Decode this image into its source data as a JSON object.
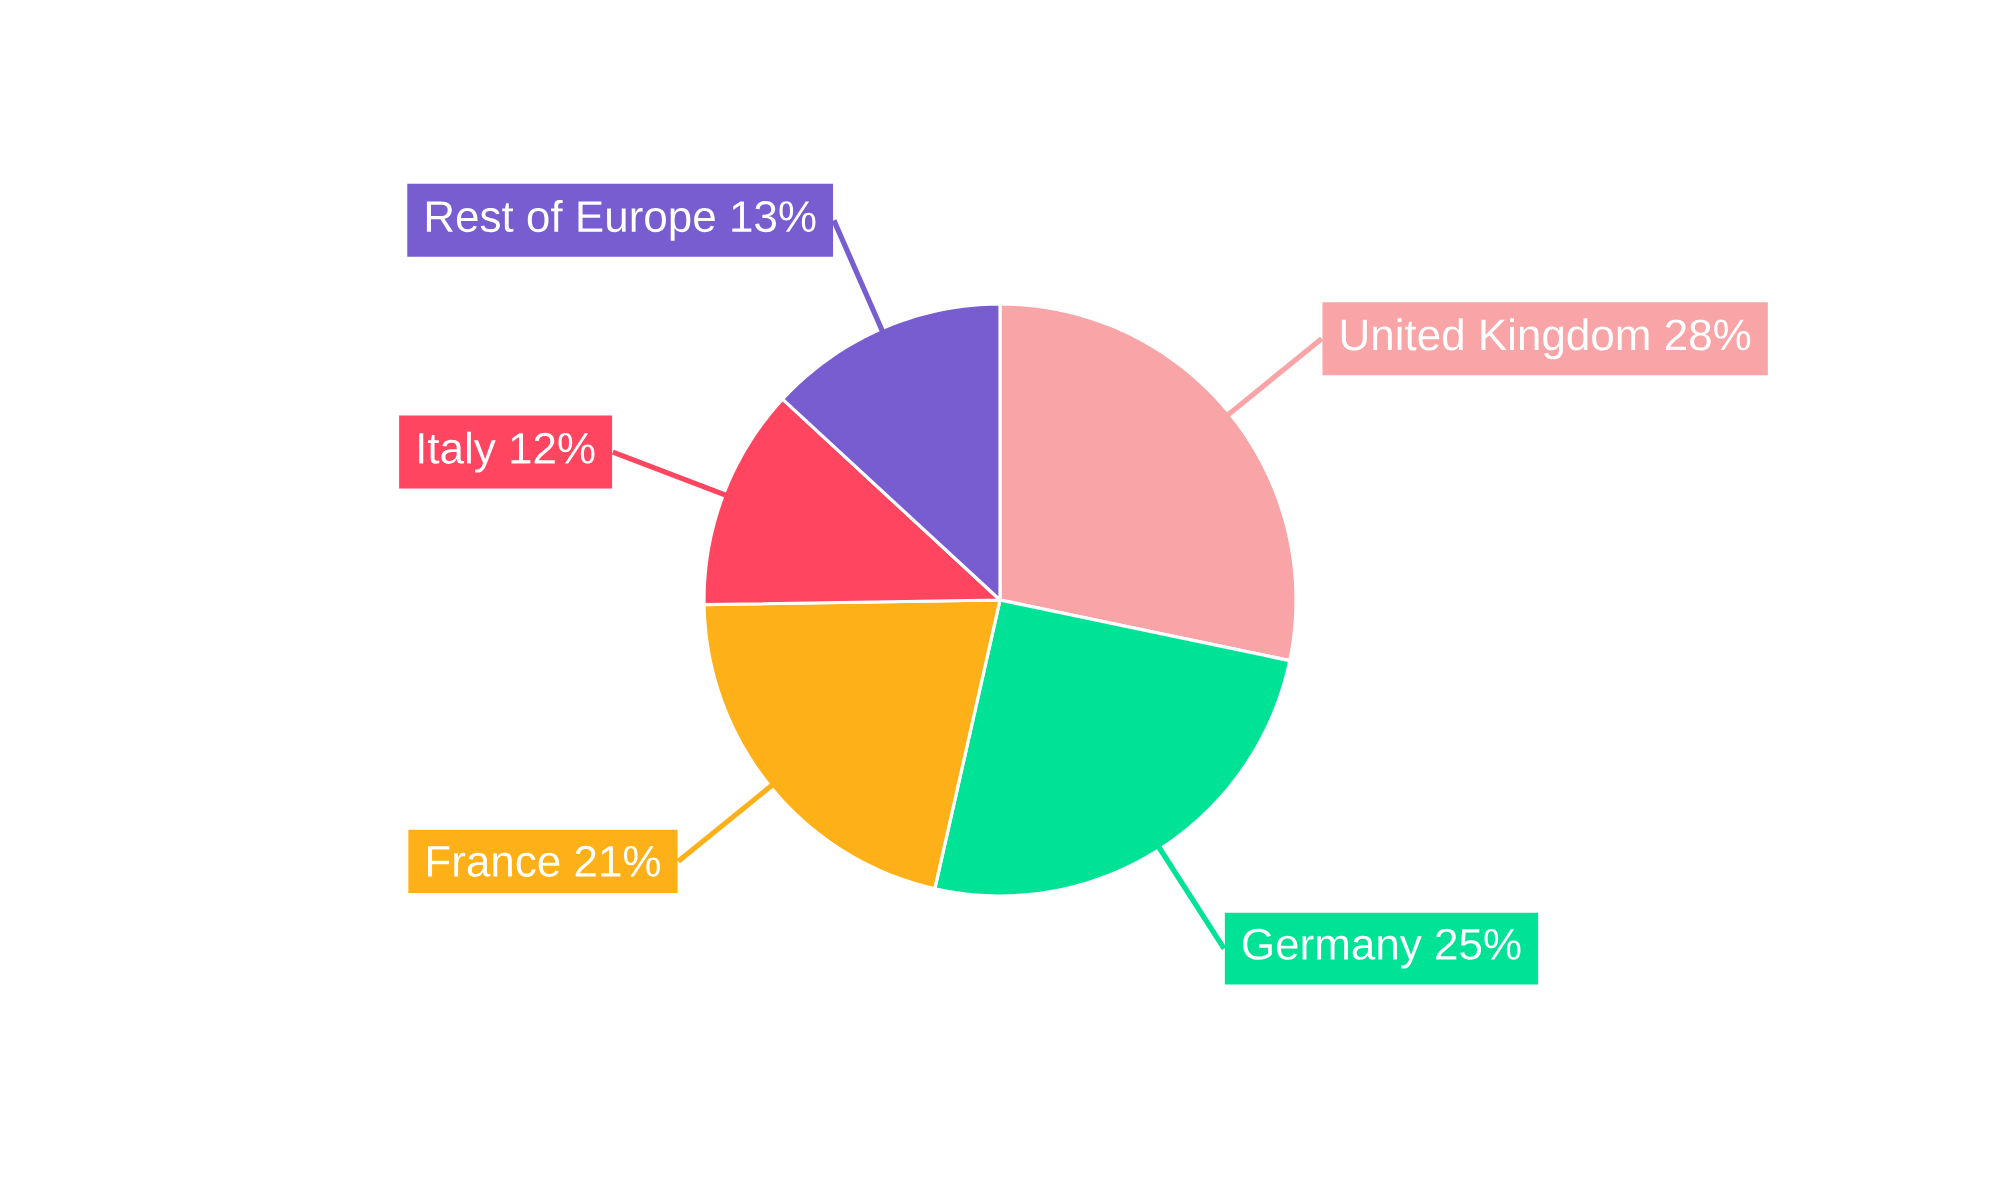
{
  "chart_data": {
    "type": "pie",
    "categories": [
      "United Kingdom",
      "Germany",
      "France",
      "Italy",
      "Rest of Europe"
    ],
    "values": [
      28,
      25,
      21,
      12,
      13
    ],
    "value_labels": [
      "28%",
      "25%",
      "21%",
      "12%",
      "13%"
    ],
    "colors": [
      "#f9a4a6",
      "#00e396",
      "#feb019",
      "#ff4560",
      "#775dd0"
    ]
  }
}
